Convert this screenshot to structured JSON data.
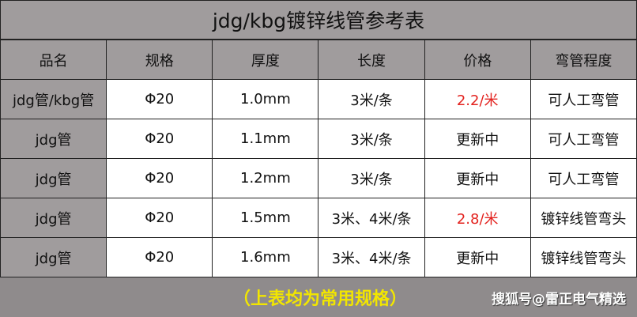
{
  "title": "jdg/kbg镀锌线管参考表",
  "headers": [
    "品名",
    "规格",
    "厚度",
    "长度",
    "价格",
    "弯管程度"
  ],
  "rows": [
    [
      "jdg管/kbg管",
      "Φ20",
      "1.0mm",
      "3米/条",
      "2.2/米",
      "可人工弯管"
    ],
    [
      "jdg管",
      "Φ20",
      "1.1mm",
      "3米/条",
      "更新中",
      "可人工弯管"
    ],
    [
      "jdg管",
      "Φ20",
      "1.2mm",
      "3米/条",
      "更新中",
      "可人工弯管"
    ],
    [
      "jdg管",
      "Φ20",
      "1.5mm",
      "3米、4米/条",
      "2.8/米",
      "镀锌线管弯头"
    ],
    [
      "jdg管",
      "Φ20",
      "1.6mm",
      "3米、4米/条",
      "更新中",
      "镀锌线管弯头"
    ]
  ],
  "footer_note": "（上表均为常用规格）",
  "watermark": "搜狐号@雷正电气精选",
  "colors": {
    "header_gray": "#a09c9d",
    "price_red": "#e3221e",
    "note_yellow": "#f2e600"
  }
}
